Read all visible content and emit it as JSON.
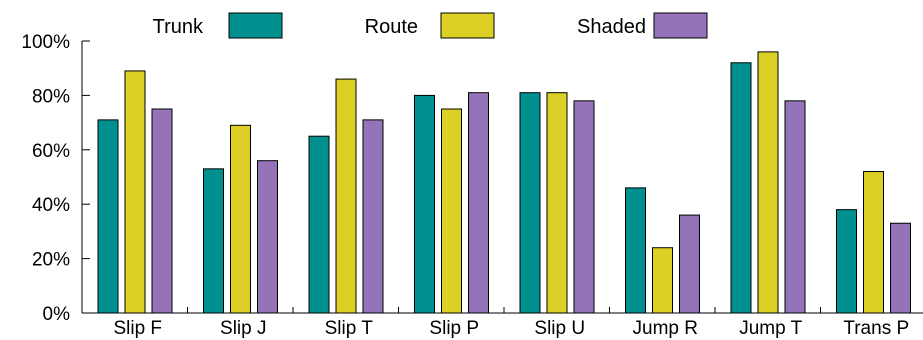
{
  "colors": {
    "bar_stroke": "#000000",
    "axis": "#000000"
  },
  "chart_data": {
    "type": "bar",
    "title": "",
    "xlabel": "",
    "ylabel": "",
    "categories": [
      "Slip F",
      "Slip J",
      "Slip T",
      "Slip P",
      "Slip U",
      "Jump R",
      "Jump T",
      "Trans P"
    ],
    "series": [
      {
        "name": "Trunk",
        "color": "#009090",
        "values": [
          71,
          53,
          65,
          80,
          81,
          46,
          92,
          38
        ]
      },
      {
        "name": "Route",
        "color": "#dcd026",
        "values": [
          89,
          69,
          86,
          75,
          81,
          24,
          96,
          52
        ]
      },
      {
        "name": "Shaded",
        "color": "#9573b8",
        "values": [
          75,
          56,
          71,
          81,
          78,
          36,
          78,
          33
        ]
      }
    ],
    "y_ticks": [
      "0%",
      "20%",
      "40%",
      "60%",
      "80%",
      "100%"
    ],
    "ylim": [
      0,
      100
    ],
    "grid": false,
    "legend_position": "top"
  }
}
